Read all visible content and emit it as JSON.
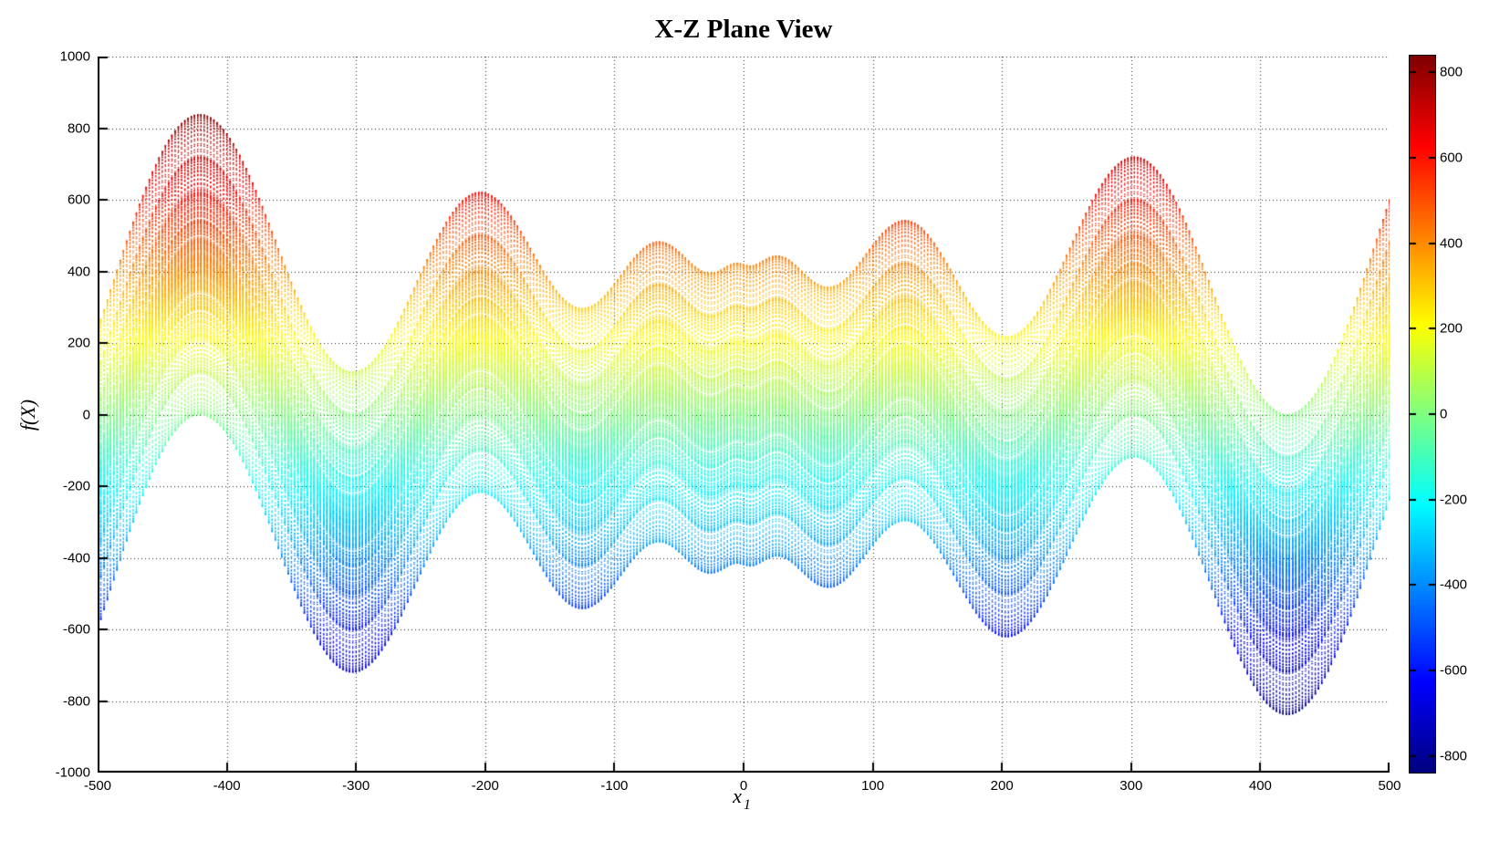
{
  "title": "X-Z Plane View",
  "axes": {
    "xlabel_base": "x",
    "xlabel_sub": "1",
    "ylabel": "f(X)"
  },
  "colors": {
    "background": "#ffffff",
    "axis": "#000000",
    "grid": "#000000",
    "text": "#000000"
  },
  "chart_data": {
    "type": "scatter",
    "title": "X-Z Plane View",
    "xlabel": "x_1",
    "ylabel": "f(X)",
    "xlim": [
      -500,
      500
    ],
    "ylim": [
      -1000,
      1000
    ],
    "x_ticks": [
      -500,
      -400,
      -300,
      -200,
      -100,
      0,
      100,
      200,
      300,
      400,
      500
    ],
    "y_ticks": [
      -1000,
      -800,
      -600,
      -400,
      -200,
      0,
      200,
      400,
      600,
      800,
      1000
    ],
    "grid": true,
    "grid_line_style": "dotted",
    "legend": "none",
    "marker": "point",
    "marker_size_px": 1.4,
    "colormap": "jet",
    "color_by": "f_value",
    "colorbar": {
      "position": "right",
      "min": -839,
      "max": 839,
      "ticks": [
        800,
        600,
        400,
        200,
        0,
        -200,
        -400,
        -600,
        -800
      ]
    },
    "surface": {
      "description": "Schwefel-type surface f(x1,x2) = -x1*sin(sqrt(|x1|)) - x2*sin(sqrt(|x2|)) viewed along the x2 axis (X-Z plane projection); each x2 slice traces the same curve shifted vertically, filling a band of half-width ~419 around g(x1) = -x1*sin(sqrt(|x1|))",
      "g_of_x": "-x*sin(sqrt(abs(x)))",
      "x1_min": -500,
      "x1_max": 500,
      "x1_step": 2.5,
      "x2_min": -500,
      "x2_max": 500,
      "x2_step": 2.5
    },
    "features": {
      "global_max": {
        "x1": -421,
        "f": 838
      },
      "global_min": {
        "x1": 421,
        "f": -838
      },
      "upper_envelope_peaks": [
        {
          "x1": -421,
          "f": 838
        },
        {
          "x1": -200,
          "f": 620
        },
        {
          "x1": -65,
          "f": 480
        },
        {
          "x1": 25,
          "f": 440
        },
        {
          "x1": 126,
          "f": 542
        },
        {
          "x1": 300,
          "f": 718
        },
        {
          "x1": 500,
          "f": 600
        }
      ],
      "lower_envelope_valleys": [
        {
          "x1": -500,
          "f": -600
        },
        {
          "x1": -300,
          "f": -718
        },
        {
          "x1": -126,
          "f": -542
        },
        {
          "x1": -25,
          "f": -440
        },
        {
          "x1": 200,
          "f": -620
        },
        {
          "x1": 421,
          "f": -838
        }
      ]
    }
  }
}
